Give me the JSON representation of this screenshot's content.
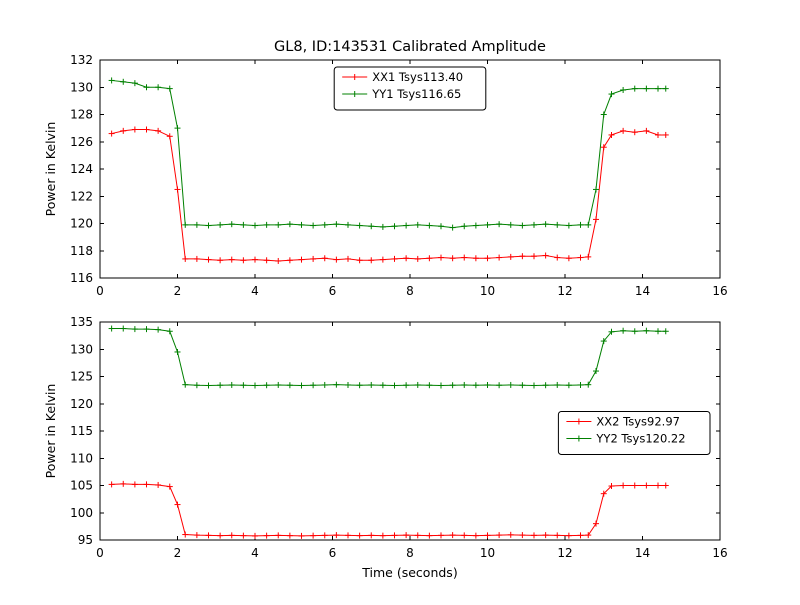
{
  "figure": {
    "title": "GL8, ID:143531 Calibrated Amplitude",
    "background": "#ffffff"
  },
  "chart_data": [
    {
      "type": "line",
      "title": "GL8, ID:143531 Calibrated Amplitude",
      "xlabel": "",
      "ylabel": "Power in Kelvin",
      "xlim": [
        0,
        16
      ],
      "ylim": [
        116,
        132
      ],
      "xticks": [
        0,
        2,
        4,
        6,
        8,
        10,
        12,
        14,
        16
      ],
      "yticks": [
        116,
        118,
        120,
        122,
        124,
        126,
        128,
        130,
        132
      ],
      "grid": false,
      "legend_position": "upper-center",
      "marker": "plus",
      "x": [
        0.3,
        0.6,
        0.9,
        1.2,
        1.5,
        1.8,
        2.0,
        2.2,
        2.5,
        2.8,
        3.1,
        3.4,
        3.7,
        4.0,
        4.3,
        4.6,
        4.9,
        5.2,
        5.5,
        5.8,
        6.1,
        6.4,
        6.7,
        7.0,
        7.3,
        7.6,
        7.9,
        8.2,
        8.5,
        8.8,
        9.1,
        9.4,
        9.7,
        10.0,
        10.3,
        10.6,
        10.9,
        11.2,
        11.5,
        11.8,
        12.1,
        12.4,
        12.6,
        12.8,
        13.0,
        13.2,
        13.5,
        13.8,
        14.1,
        14.4,
        14.6
      ],
      "series": [
        {
          "name": "XX1 Tsys113.40",
          "color": "#ff0000",
          "values": [
            126.6,
            126.8,
            126.9,
            126.9,
            126.8,
            126.4,
            122.5,
            117.4,
            117.4,
            117.35,
            117.3,
            117.35,
            117.3,
            117.35,
            117.3,
            117.25,
            117.3,
            117.35,
            117.4,
            117.45,
            117.35,
            117.4,
            117.3,
            117.3,
            117.35,
            117.4,
            117.45,
            117.4,
            117.45,
            117.5,
            117.45,
            117.5,
            117.45,
            117.45,
            117.5,
            117.55,
            117.6,
            117.6,
            117.65,
            117.5,
            117.45,
            117.5,
            117.55,
            120.3,
            125.6,
            126.5,
            126.8,
            126.7,
            126.8,
            126.5,
            126.5
          ]
        },
        {
          "name": "YY1 Tsys116.65",
          "color": "#008000",
          "values": [
            130.5,
            130.4,
            130.3,
            130.0,
            130.0,
            129.9,
            127.0,
            119.9,
            119.9,
            119.85,
            119.9,
            119.95,
            119.9,
            119.85,
            119.9,
            119.9,
            119.95,
            119.9,
            119.85,
            119.9,
            119.95,
            119.9,
            119.85,
            119.8,
            119.75,
            119.8,
            119.85,
            119.9,
            119.85,
            119.8,
            119.7,
            119.8,
            119.85,
            119.9,
            119.95,
            119.9,
            119.85,
            119.9,
            119.95,
            119.9,
            119.85,
            119.9,
            119.9,
            122.5,
            128.0,
            129.5,
            129.8,
            129.9,
            129.9,
            129.9,
            129.9
          ]
        }
      ]
    },
    {
      "type": "line",
      "title": "",
      "xlabel": "Time (seconds)",
      "ylabel": "Power in Kelvin",
      "xlim": [
        0,
        16
      ],
      "ylim": [
        95,
        135
      ],
      "xticks": [
        0,
        2,
        4,
        6,
        8,
        10,
        12,
        14,
        16
      ],
      "yticks": [
        95,
        100,
        105,
        110,
        115,
        120,
        125,
        130,
        135
      ],
      "grid": false,
      "legend_position": "center-right",
      "marker": "plus",
      "x": [
        0.3,
        0.6,
        0.9,
        1.2,
        1.5,
        1.8,
        2.0,
        2.2,
        2.5,
        2.8,
        3.1,
        3.4,
        3.7,
        4.0,
        4.3,
        4.6,
        4.9,
        5.2,
        5.5,
        5.8,
        6.1,
        6.4,
        6.7,
        7.0,
        7.3,
        7.6,
        7.9,
        8.2,
        8.5,
        8.8,
        9.1,
        9.4,
        9.7,
        10.0,
        10.3,
        10.6,
        10.9,
        11.2,
        11.5,
        11.8,
        12.1,
        12.4,
        12.6,
        12.8,
        13.0,
        13.2,
        13.5,
        13.8,
        14.1,
        14.4,
        14.6
      ],
      "series": [
        {
          "name": "XX2 Tsys92.97",
          "color": "#ff0000",
          "values": [
            105.2,
            105.3,
            105.2,
            105.2,
            105.1,
            104.8,
            101.5,
            96.0,
            95.9,
            95.85,
            95.8,
            95.85,
            95.8,
            95.75,
            95.8,
            95.85,
            95.8,
            95.75,
            95.8,
            95.85,
            95.9,
            95.85,
            95.8,
            95.85,
            95.8,
            95.85,
            95.9,
            95.85,
            95.8,
            95.85,
            95.9,
            95.85,
            95.8,
            95.85,
            95.9,
            95.95,
            95.9,
            95.85,
            95.9,
            95.85,
            95.8,
            95.85,
            95.9,
            98.0,
            103.5,
            104.9,
            105.0,
            105.0,
            105.0,
            105.0,
            105.0
          ]
        },
        {
          "name": "YY2 Tsys120.22",
          "color": "#008000",
          "values": [
            133.8,
            133.8,
            133.7,
            133.7,
            133.6,
            133.3,
            129.5,
            123.5,
            123.4,
            123.35,
            123.4,
            123.45,
            123.4,
            123.35,
            123.4,
            123.45,
            123.4,
            123.35,
            123.4,
            123.45,
            123.5,
            123.45,
            123.4,
            123.45,
            123.4,
            123.35,
            123.4,
            123.45,
            123.4,
            123.35,
            123.4,
            123.45,
            123.4,
            123.45,
            123.4,
            123.45,
            123.4,
            123.35,
            123.4,
            123.45,
            123.4,
            123.45,
            123.5,
            126.0,
            131.5,
            133.2,
            133.4,
            133.3,
            133.4,
            133.3,
            133.3
          ]
        }
      ]
    }
  ]
}
